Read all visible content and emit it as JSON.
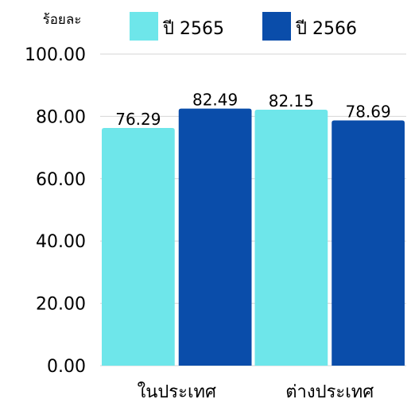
{
  "chart_data": {
    "type": "bar",
    "y_axis_label": "ร้อยละ",
    "categories": [
      "ในประเทศ",
      "ต่างประเทศ"
    ],
    "series": [
      {
        "name": "ปี 2565",
        "color": "#6ee6ea",
        "values": [
          76.29,
          82.15
        ]
      },
      {
        "name": "ปี 2566",
        "color": "#0a4daa",
        "values": [
          82.49,
          78.69
        ]
      }
    ],
    "ylim": [
      0,
      100
    ],
    "yticks": [
      {
        "value": 0,
        "label": "0.00"
      },
      {
        "value": 20,
        "label": "20.00"
      },
      {
        "value": 40,
        "label": "40.00"
      },
      {
        "value": 60,
        "label": "60.00"
      },
      {
        "value": 80,
        "label": "80.00"
      },
      {
        "value": 100,
        "label": "100.00"
      }
    ],
    "grid": true,
    "legend": "top"
  }
}
